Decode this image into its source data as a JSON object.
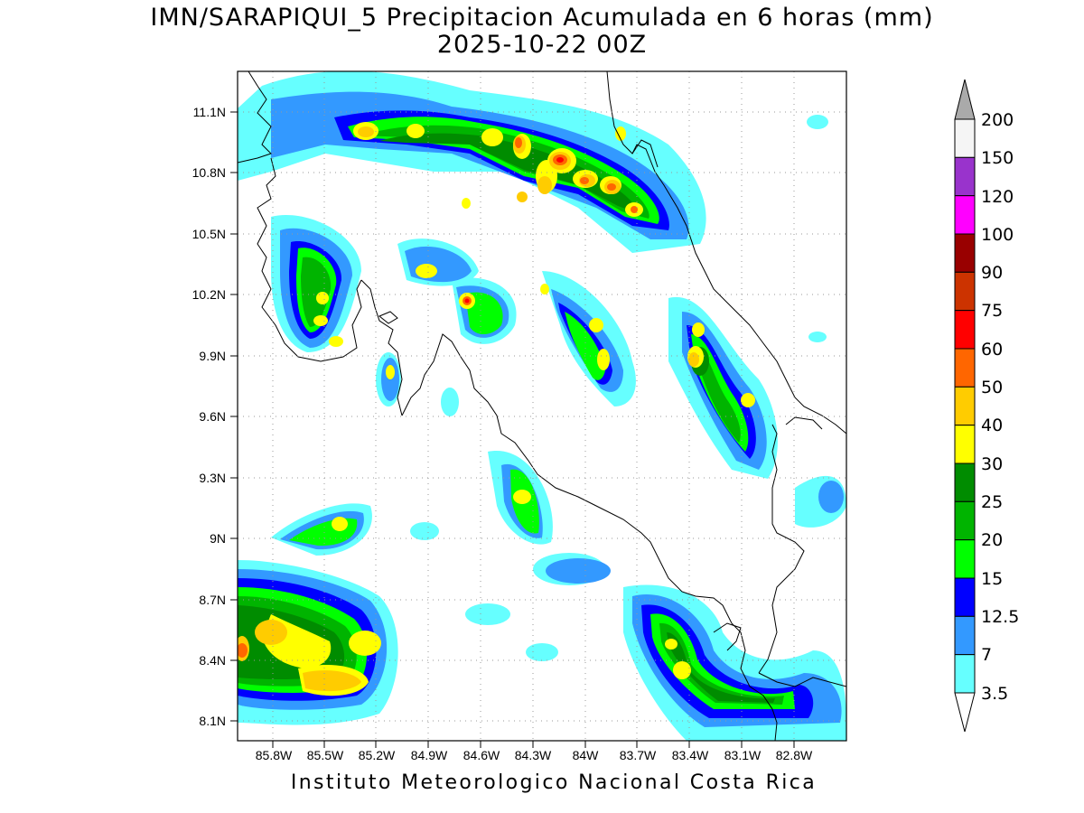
{
  "title": {
    "line1": "IMN/SARAPIQUI_5 Precipitacion Acumulada en 6 horas (mm)",
    "line2": "2025-10-22 00Z"
  },
  "footer": "Instituto Meteorologico Nacional Costa Rica",
  "map": {
    "lat_labels": [
      "11.1N",
      "10.8N",
      "10.5N",
      "10.2N",
      "9.9N",
      "9.6N",
      "9.3N",
      "9N",
      "8.7N",
      "8.4N",
      "8.1N"
    ],
    "lon_labels": [
      "85.8W",
      "85.5W",
      "85.2W",
      "84.9W",
      "84.6W",
      "84.3W",
      "84W",
      "83.7W",
      "83.4W",
      "83.1W",
      "82.8W"
    ],
    "grid": true
  },
  "colorbar": {
    "labels": [
      "200",
      "150",
      "120",
      "100",
      "90",
      "75",
      "60",
      "50",
      "40",
      "30",
      "25",
      "20",
      "15",
      "12.5",
      "7",
      "3.5"
    ],
    "colors": [
      "#f5f5f5",
      "#9933cc",
      "#ff00ff",
      "#990000",
      "#cc3300",
      "#ff0000",
      "#ff6600",
      "#ffcc00",
      "#ffff00",
      "#008c00",
      "#00b400",
      "#00ff00",
      "#0000ff",
      "#3399ff",
      "#66ffff"
    ],
    "over_color": "#aaaaaa"
  }
}
